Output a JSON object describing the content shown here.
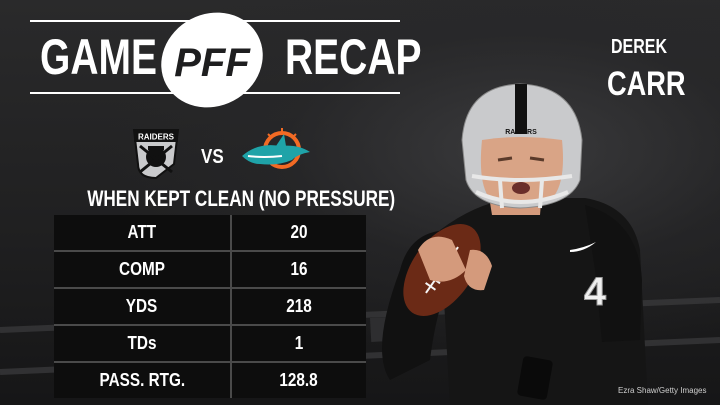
{
  "header": {
    "title_left": "GAME",
    "title_right": "RECAP",
    "logo_text": "PFF"
  },
  "player": {
    "first_name": "DEREK",
    "last_name": "CARR",
    "jersey_number": "4",
    "helmet_text": "RAIDERS"
  },
  "matchup": {
    "team1_logo_text": "RAIDERS",
    "vs_label": "VS",
    "team1_icon": "raiders-logo-icon",
    "team2_icon": "dolphins-logo-icon"
  },
  "stats": {
    "title": "WHEN KEPT CLEAN (NO PRESSURE)",
    "rows": [
      {
        "label": "ATT",
        "value": "20"
      },
      {
        "label": "COMP",
        "value": "16"
      },
      {
        "label": "YDS",
        "value": "218"
      },
      {
        "label": "TDs",
        "value": "1"
      },
      {
        "label": "PASS. RTG.",
        "value": "128.8"
      }
    ]
  },
  "photo_credit": "Ezra Shaw/Getty Images",
  "colors": {
    "background": "#1e1e1f",
    "table_cell": "#0d0d0d",
    "text": "#ffffff",
    "jersey": "#151515",
    "helmet": "#c9cacc"
  }
}
